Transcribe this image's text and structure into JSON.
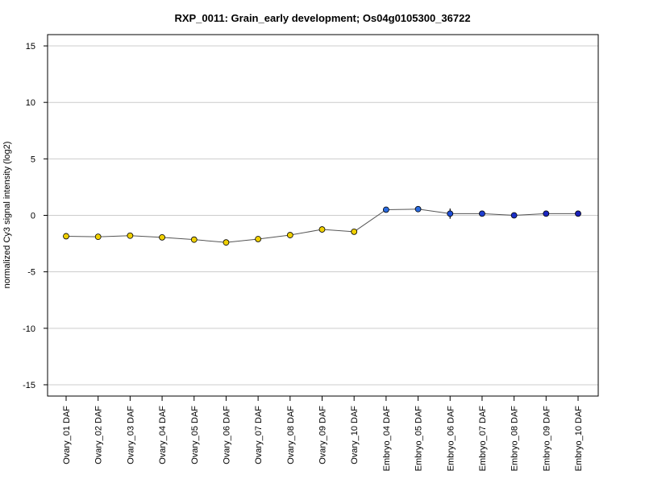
{
  "chart_data": {
    "type": "line",
    "title": "RXP_0011: Grain_early development; Os04g0105300_36722",
    "xlabel": "",
    "ylabel": "normalized Cy3 signal intensity (log2)",
    "ylim": [
      -16,
      16
    ],
    "yticks": [
      -15,
      -10,
      -5,
      0,
      5,
      10,
      15
    ],
    "grid": "horizontal",
    "categories": [
      "Ovary_01 DAF",
      "Ovary_02 DAF",
      "Ovary_03 DAF",
      "Ovary_04 DAF",
      "Ovary_05 DAF",
      "Ovary_06 DAF",
      "Ovary_07 DAF",
      "Ovary_08 DAF",
      "Ovary_09 DAF",
      "Ovary_10 DAF",
      "Embryo_04 DAF",
      "Embryo_05 DAF",
      "Embryo_06 DAF",
      "Embryo_07 DAF",
      "Embryo_08 DAF",
      "Embryo_09 DAF",
      "Embryo_10 DAF"
    ],
    "series": [
      {
        "values": [
          -1.85,
          -1.9,
          -1.8,
          -1.95,
          -2.15,
          -2.4,
          -2.1,
          -1.75,
          -1.25,
          -1.45,
          0.5,
          0.55,
          0.15,
          0.15,
          0.0,
          0.15,
          0.15
        ],
        "errors": [
          0.15,
          0.1,
          0.1,
          0.15,
          0.15,
          0.1,
          0.15,
          0.15,
          0.15,
          0.15,
          0.1,
          0.1,
          0.45,
          0.1,
          0.1,
          0.1,
          0.1
        ],
        "line_color": "#555555"
      }
    ],
    "point_colors": [
      "#f0d000",
      "#f0d000",
      "#f0d000",
      "#f0d000",
      "#f0d000",
      "#f0d000",
      "#f0d000",
      "#f0d000",
      "#f0d000",
      "#f0d000",
      "#2a6be0",
      "#2a6be0",
      "#1f4fd8",
      "#1f3fd0",
      "#1a2fc8",
      "#1a25c0",
      "#1a20b8"
    ]
  }
}
